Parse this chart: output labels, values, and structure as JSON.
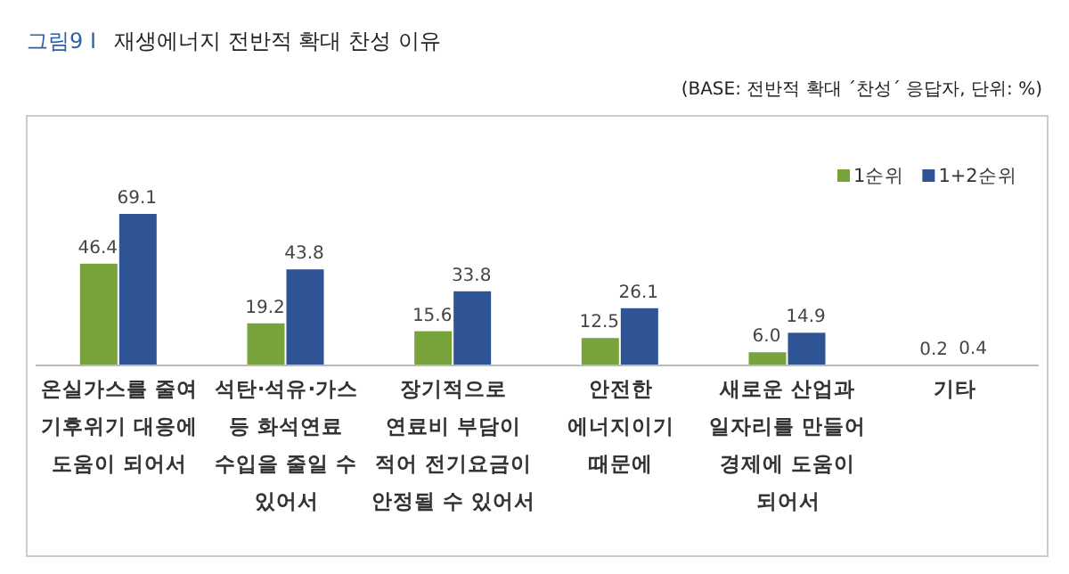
{
  "chart_data": {
    "type": "bar",
    "title": "재생에너지 전반적 확대 찬성 이유",
    "subtitle": "(BASE: 전반적 확대 ´찬성´ 응답자, 단위: %)",
    "annotations": [
      "그림9 I"
    ],
    "categories": [
      "온실가스를 줄여\n기후위기 대응에\n도움이 되어서",
      "석탄·석유·가스\n등 화석연료\n수입을 줄일 수\n있어서",
      "장기적으로\n연료비 부담이\n적어 전기요금이\n안정될 수 있어서",
      "안전한\n에너지이기\n때문에",
      "새로운 산업과\n일자리를 만들어\n경제에 도움이\n되어서",
      "기타"
    ],
    "series": [
      {
        "name": "1순위",
        "color": "#77a33a",
        "values": [
          46.4,
          19.2,
          15.6,
          12.5,
          6.0,
          0.2
        ],
        "value_labels": [
          "46.4",
          "19.2",
          "15.6",
          "12.5",
          "6.0",
          "0.2"
        ]
      },
      {
        "name": "1+2순위",
        "color": "#2f5496",
        "values": [
          69.1,
          43.8,
          33.8,
          26.1,
          14.9,
          0.4
        ],
        "value_labels": [
          "69.1",
          "43.8",
          "33.8",
          "26.1",
          "14.9",
          "0.4"
        ]
      }
    ],
    "legend": "top right"
  }
}
